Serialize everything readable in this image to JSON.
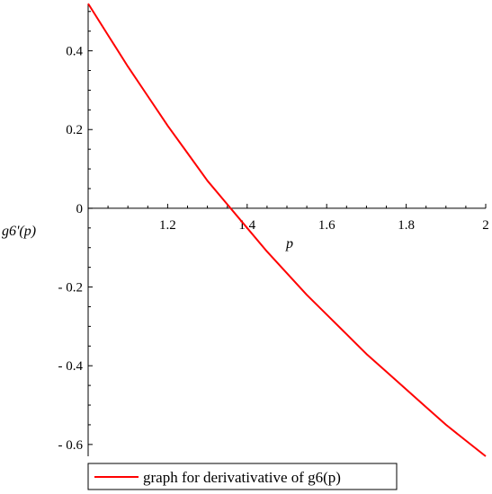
{
  "chart_data": {
    "type": "line",
    "xlabel": "p",
    "ylabel": "g6'(p)",
    "xlim": [
      1.0,
      2.0
    ],
    "ylim": [
      -0.63,
      0.52
    ],
    "x_ticks": [
      1.2,
      1.4,
      1.6,
      1.8,
      2
    ],
    "x_tick_labels": [
      "1.2",
      "1.4",
      "1.6",
      "1.8",
      "2"
    ],
    "y_ticks": [
      0.4,
      0.2,
      0,
      -0.2,
      -0.4,
      -0.6
    ],
    "y_tick_labels": [
      "0.4",
      "0.2",
      "0",
      "- 0.2",
      "- 0.4",
      "- 0.6"
    ],
    "series": [
      {
        "name": "graph for derivativative of g6(p)",
        "color": "#ff0000",
        "x": [
          1.0,
          1.05,
          1.1,
          1.15,
          1.2,
          1.25,
          1.3,
          1.35,
          1.4,
          1.45,
          1.5,
          1.55,
          1.6,
          1.65,
          1.7,
          1.75,
          1.8,
          1.85,
          1.9,
          1.95,
          2.0
        ],
        "y": [
          0.52,
          0.44,
          0.36,
          0.285,
          0.21,
          0.14,
          0.07,
          0.01,
          -0.05,
          -0.11,
          -0.165,
          -0.22,
          -0.27,
          -0.32,
          -0.37,
          -0.415,
          -0.46,
          -0.505,
          -0.55,
          -0.59,
          -0.63
        ]
      }
    ],
    "legend": {
      "position": "bottom",
      "labels": [
        "graph for derivativative of g6(p)"
      ]
    },
    "grid": false
  }
}
